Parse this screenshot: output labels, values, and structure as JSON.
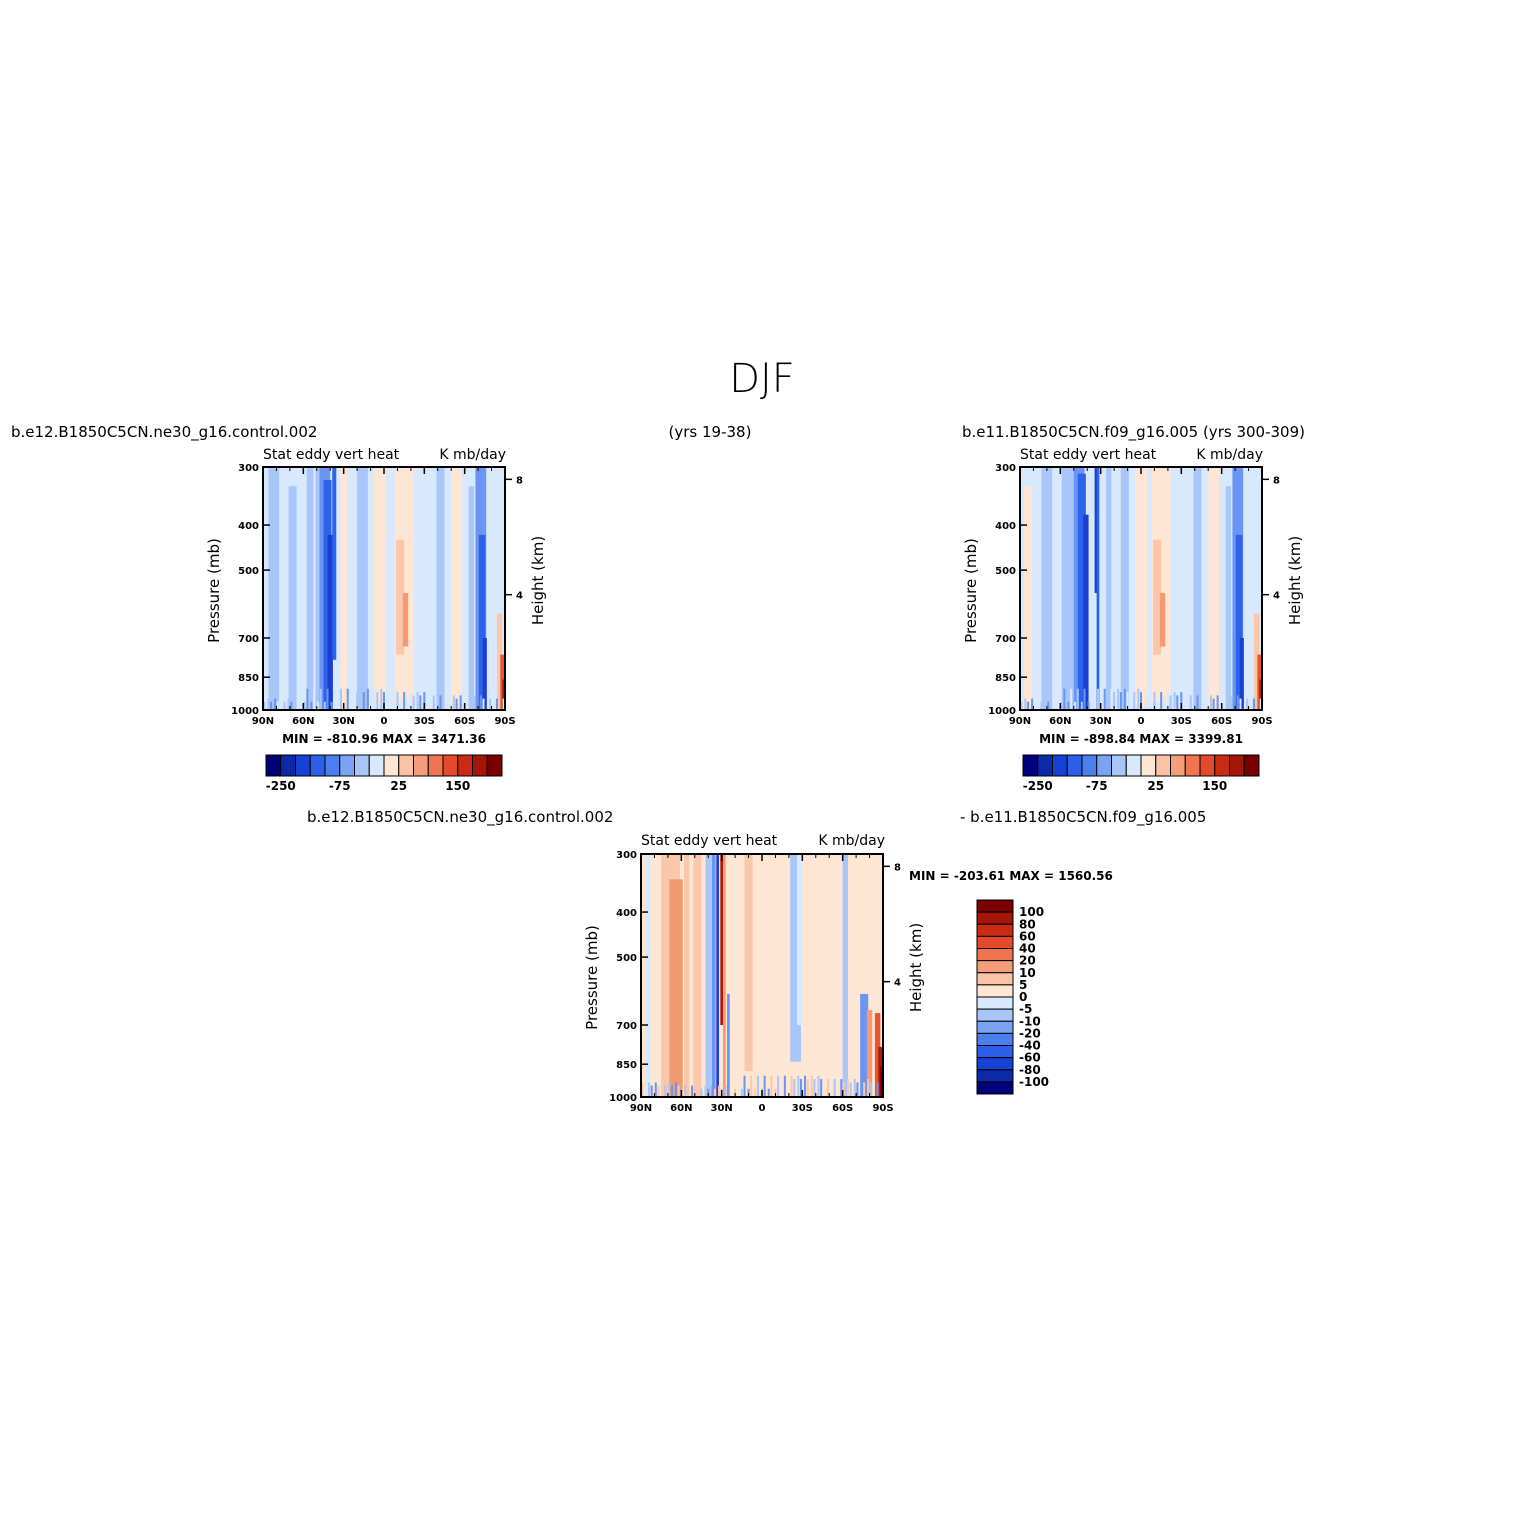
{
  "page_title": "DJF",
  "panels": {
    "top_left": {
      "case_title": "b.e12.B1850C5CN.ne30_g16.control.002",
      "years": "(yrs 19-38)",
      "field_label": "Stat eddy vert heat",
      "units": "K mb/day",
      "stats": "MIN = -810.96   MAX = 3471.36"
    },
    "top_right": {
      "case_title": "b.e11.B1850C5CN.f09_g16.005 (yrs 300-309)",
      "field_label": "Stat eddy vert heat",
      "units": "K mb/day",
      "stats": "MIN = -898.84   MAX = 3399.81"
    },
    "bottom": {
      "case_title_a": "b.e12.B1850C5CN.ne30_g16.control.002",
      "case_title_b": "- b.e11.B1850C5CN.f09_g16.005",
      "field_label": "Stat eddy vert heat",
      "units": "K mb/day",
      "stats": "MIN = -203.61   MAX = 1560.56"
    }
  },
  "axes": {
    "ylabel_left": "Pressure (mb)",
    "ylabel_right": "Height (km)",
    "pressure_ticks": [
      "300",
      "400",
      "500",
      "700",
      "850",
      "1000"
    ],
    "pressure_values": [
      300,
      400,
      500,
      700,
      850,
      1000
    ],
    "height_ticks": [
      "8",
      "4"
    ],
    "height_values": [
      8,
      4
    ],
    "lat_ticks": [
      "90N",
      "60N",
      "30N",
      "0",
      "30S",
      "60S",
      "90S"
    ]
  },
  "colorbars": {
    "top_labels": [
      "-250",
      "-75",
      "25",
      "150"
    ],
    "top_colors": [
      "#00007a",
      "#0b2aa8",
      "#1541d6",
      "#2c5ee8",
      "#4b7ff0",
      "#7aa3f4",
      "#a8c5f8",
      "#d8e9fd",
      "#ffe6d3",
      "#fbc3a5",
      "#f59d78",
      "#ef7550",
      "#e24a2b",
      "#c92b14",
      "#a5150a",
      "#7a0000"
    ],
    "diff_labels": [
      "100",
      "80",
      "60",
      "40",
      "20",
      "10",
      "5",
      "0",
      "-5",
      "-10",
      "-20",
      "-40",
      "-60",
      "-80",
      "-100"
    ],
    "diff_colors": [
      "#7a0000",
      "#a5150a",
      "#c92b14",
      "#e24a2b",
      "#ef7550",
      "#f59d78",
      "#fbc3a5",
      "#ffe6d3",
      "#d8e9fd",
      "#a8c5f8",
      "#7aa3f4",
      "#4b7ff0",
      "#2c5ee8",
      "#1541d6",
      "#0b2aa8",
      "#00007a"
    ]
  },
  "chart_data": [
    {
      "type": "heatmap",
      "title": "b.e12.B1850C5CN.ne30_g16.control.002 (yrs 19-38)",
      "subtitle": "Stat eddy vert heat",
      "units": "K mb/day",
      "xlabel": "",
      "ylabel": "Pressure (mb)",
      "ylabel_right": "Height (km)",
      "x": [
        "90N",
        "60N",
        "30N",
        "0",
        "30S",
        "60S",
        "90S"
      ],
      "ylim": [
        1000,
        300
      ],
      "y_scale": "log",
      "min": -810.96,
      "max": 3471.36,
      "colorbar_labels": [
        -250,
        -75,
        25,
        150
      ],
      "features": [
        {
          "lat": 42,
          "sign": "negative",
          "intensity": "strong",
          "extent": "full column"
        },
        {
          "lat": 55,
          "sign": "negative",
          "intensity": "weak",
          "extent": "full column"
        },
        {
          "lat": -15,
          "sign": "positive",
          "intensity": "moderate",
          "extent": "mid troposphere"
        },
        {
          "lat": -72,
          "sign": "negative",
          "intensity": "strong",
          "extent": "full column"
        },
        {
          "lat": -88,
          "sign": "positive",
          "intensity": "strong",
          "extent": "lower troposphere"
        }
      ]
    },
    {
      "type": "heatmap",
      "title": "b.e11.B1850C5CN.f09_g16.005 (yrs 300-309)",
      "subtitle": "Stat eddy vert heat",
      "units": "K mb/day",
      "xlabel": "",
      "ylabel": "Pressure (mb)",
      "ylabel_right": "Height (km)",
      "x": [
        "90N",
        "60N",
        "30N",
        "0",
        "30S",
        "60S",
        "90S"
      ],
      "ylim": [
        1000,
        300
      ],
      "y_scale": "log",
      "min": -898.84,
      "max": 3399.81,
      "colorbar_labels": [
        -250,
        -75,
        25,
        150
      ],
      "features": [
        {
          "lat": 44,
          "sign": "negative",
          "intensity": "strong",
          "extent": "full column"
        },
        {
          "lat": 32,
          "sign": "negative",
          "intensity": "very strong",
          "extent": "upper troposphere"
        },
        {
          "lat": -15,
          "sign": "positive",
          "intensity": "moderate",
          "extent": "mid troposphere"
        },
        {
          "lat": -72,
          "sign": "negative",
          "intensity": "strong",
          "extent": "full column"
        },
        {
          "lat": -88,
          "sign": "positive",
          "intensity": "strong",
          "extent": "lower troposphere"
        }
      ]
    },
    {
      "type": "heatmap",
      "title": "b.e12.B1850C5CN.ne30_g16.control.002 - b.e11.B1850C5CN.f09_g16.005",
      "subtitle": "Stat eddy vert heat",
      "units": "K mb/day",
      "xlabel": "",
      "ylabel": "Pressure (mb)",
      "ylabel_right": "Height (km)",
      "x": [
        "90N",
        "60N",
        "30N",
        "0",
        "30S",
        "60S",
        "90S"
      ],
      "ylim": [
        1000,
        300
      ],
      "y_scale": "log",
      "min": -203.61,
      "max": 1560.56,
      "colorbar_labels": [
        100,
        80,
        60,
        40,
        20,
        10,
        5,
        0,
        -5,
        -10,
        -20,
        -40,
        -60,
        -80,
        -100
      ],
      "features": [
        {
          "lat": 58,
          "sign": "positive",
          "intensity": "moderate",
          "extent": "full column"
        },
        {
          "lat": 32,
          "sign": "negative",
          "intensity": "strong",
          "extent": "full column"
        },
        {
          "lat": 28,
          "sign": "positive",
          "intensity": "strong",
          "extent": "upper troposphere"
        },
        {
          "lat": -30,
          "sign": "negative",
          "intensity": "weak",
          "extent": "upper troposphere"
        },
        {
          "lat": -85,
          "sign": "positive",
          "intensity": "strong",
          "extent": "lower troposphere"
        }
      ]
    }
  ]
}
